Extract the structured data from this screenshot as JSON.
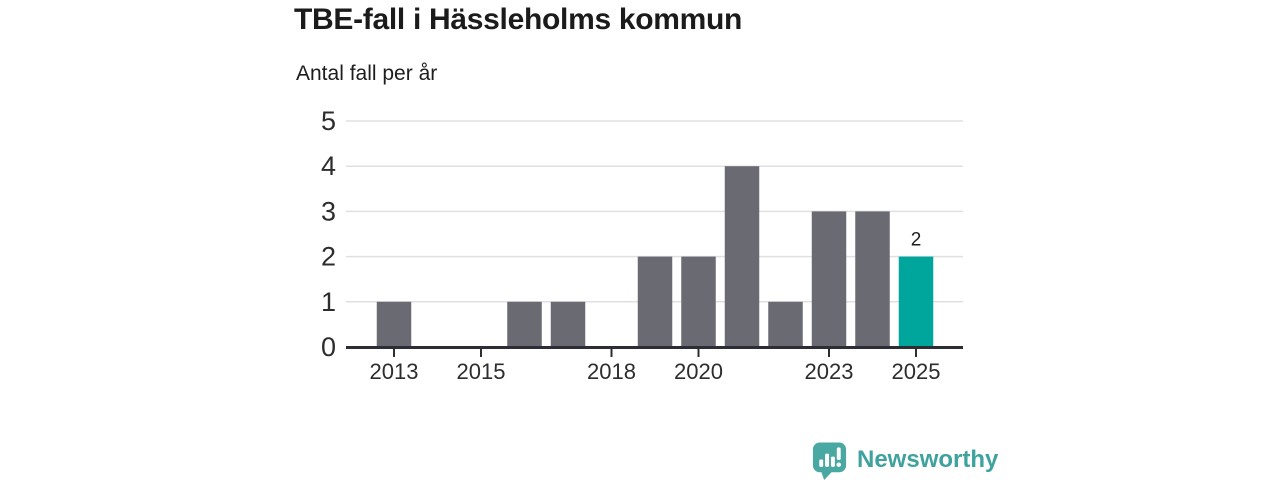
{
  "header": {
    "title": "TBE-fall i Hässleholms kommun",
    "subtitle": "Antal fall per år"
  },
  "chart_data": {
    "type": "bar",
    "title": "TBE-fall i Hässleholms kommun",
    "ylabel": "Antal fall per år",
    "xlabel": "",
    "categories": [
      "2013",
      "2014",
      "2015",
      "2016",
      "2017",
      "2018",
      "2019",
      "2020",
      "2021",
      "2022",
      "2023",
      "2024",
      "2025"
    ],
    "values": [
      1,
      0,
      0,
      1,
      1,
      0,
      2,
      2,
      4,
      1,
      3,
      3,
      2
    ],
    "xticks": [
      "2013",
      "2015",
      "2018",
      "2020",
      "2023",
      "2025"
    ],
    "yticks": [
      0,
      1,
      2,
      3,
      4,
      5
    ],
    "ylim": [
      0,
      5
    ],
    "grid": "horizontal",
    "legend": "none",
    "highlight_category": "2025",
    "bar_label": {
      "category": "2025",
      "text": "2"
    },
    "colors": {
      "bar": "#6a6a72",
      "highlight": "#00a69c",
      "grid": "#e0e0e2",
      "axis": "#2d2d35",
      "tick_labels": "#2d2d2d",
      "value_label": "#1f1f1f"
    }
  },
  "footer": {
    "brand": "Newsworthy",
    "icon_color": "#4aa8a2",
    "text_color": "#3fa29d"
  }
}
